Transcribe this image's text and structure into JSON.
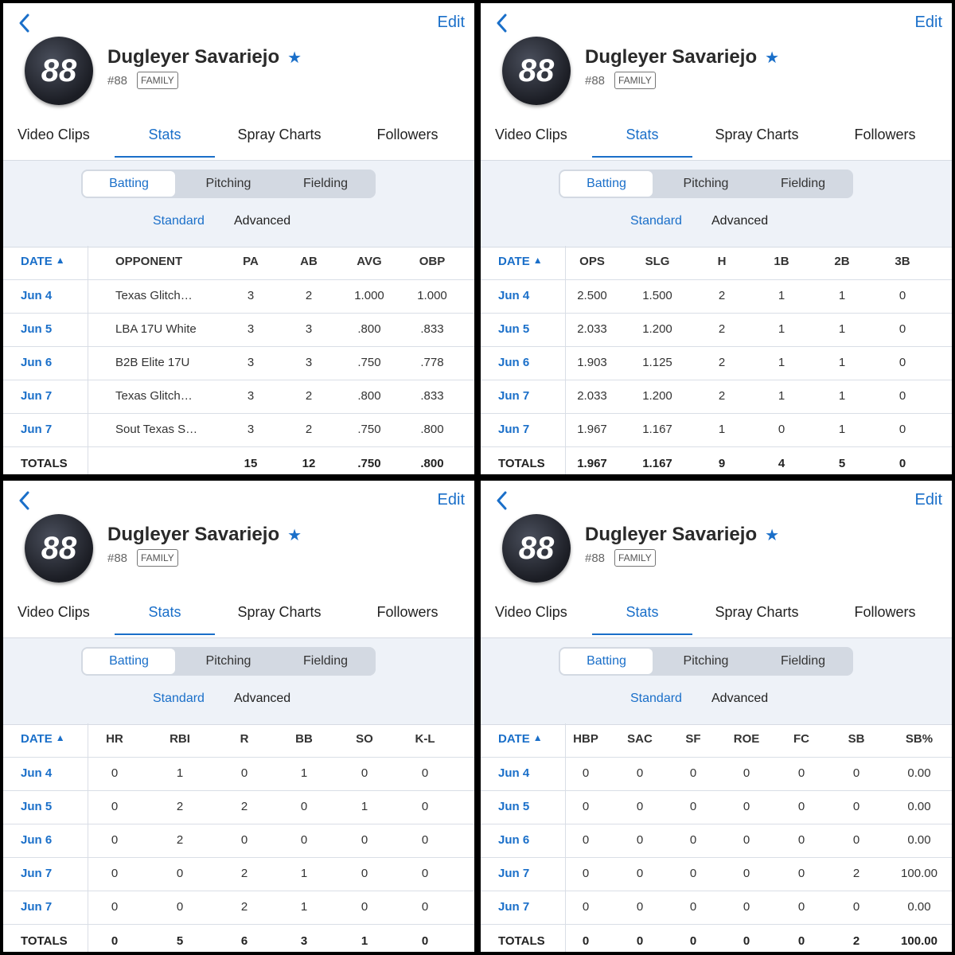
{
  "panels": [
    {
      "nav": {
        "edit": "Edit"
      },
      "player": {
        "avatar_number": "88",
        "name": "Dugleyer Savariejo",
        "number": "#88",
        "badge": "FAMILY"
      },
      "tabs": {
        "items": [
          "Video Clips",
          "Stats",
          "Spray Charts",
          "Followers"
        ],
        "active": 1
      },
      "segments": {
        "items": [
          "Batting",
          "Pitching",
          "Fielding"
        ],
        "active": 0
      },
      "subtabs": {
        "items": [
          "Standard",
          "Advanced"
        ],
        "active": 0
      },
      "table": {
        "columns": [
          "DATE",
          "OPPONENT",
          "PA",
          "AB",
          "AVG",
          "OBP"
        ],
        "rows": [
          [
            "Jun 4",
            "Texas Glitch…",
            3,
            2,
            "1.000",
            "1.000"
          ],
          [
            "Jun 5",
            "LBA 17U White",
            3,
            3,
            ".800",
            ".833"
          ],
          [
            "Jun 6",
            "B2B Elite 17U",
            3,
            3,
            ".750",
            ".778"
          ],
          [
            "Jun 7",
            "Texas Glitch…",
            3,
            2,
            ".800",
            ".833"
          ],
          [
            "Jun 7",
            "Sout Texas S…",
            3,
            2,
            ".750",
            ".800"
          ]
        ],
        "totals": [
          "TOTALS",
          null,
          15,
          12,
          ".750",
          ".800"
        ]
      }
    },
    {
      "nav": {
        "edit": "Edit"
      },
      "player": {
        "avatar_number": "88",
        "name": "Dugleyer Savariejo",
        "number": "#88",
        "badge": "FAMILY"
      },
      "tabs": {
        "items": [
          "Video Clips",
          "Stats",
          "Spray Charts",
          "Followers"
        ],
        "active": 1
      },
      "segments": {
        "items": [
          "Batting",
          "Pitching",
          "Fielding"
        ],
        "active": 0
      },
      "subtabs": {
        "items": [
          "Standard",
          "Advanced"
        ],
        "active": 0
      },
      "table": {
        "columns": [
          "DATE",
          "OPS",
          "SLG",
          "H",
          "1B",
          "2B",
          "3B"
        ],
        "rows": [
          [
            "Jun 4",
            "2.500",
            "1.500",
            2,
            1,
            1,
            0
          ],
          [
            "Jun 5",
            "2.033",
            "1.200",
            2,
            1,
            1,
            0
          ],
          [
            "Jun 6",
            "1.903",
            "1.125",
            2,
            1,
            1,
            0
          ],
          [
            "Jun 7",
            "2.033",
            "1.200",
            2,
            1,
            1,
            0
          ],
          [
            "Jun 7",
            "1.967",
            "1.167",
            1,
            0,
            1,
            0
          ]
        ],
        "totals": [
          "TOTALS",
          "1.967",
          "1.167",
          9,
          4,
          5,
          0
        ]
      }
    },
    {
      "nav": {
        "edit": "Edit"
      },
      "player": {
        "avatar_number": "88",
        "name": "Dugleyer Savariejo",
        "number": "#88",
        "badge": "FAMILY"
      },
      "tabs": {
        "items": [
          "Video Clips",
          "Stats",
          "Spray Charts",
          "Followers"
        ],
        "active": 1
      },
      "segments": {
        "items": [
          "Batting",
          "Pitching",
          "Fielding"
        ],
        "active": 0
      },
      "subtabs": {
        "items": [
          "Standard",
          "Advanced"
        ],
        "active": 0
      },
      "table": {
        "columns": [
          "DATE",
          "HR",
          "RBI",
          "R",
          "BB",
          "SO",
          "K-L"
        ],
        "rows": [
          [
            "Jun 4",
            0,
            1,
            0,
            1,
            0,
            0
          ],
          [
            "Jun 5",
            0,
            2,
            2,
            0,
            1,
            0
          ],
          [
            "Jun 6",
            0,
            2,
            0,
            0,
            0,
            0
          ],
          [
            "Jun 7",
            0,
            0,
            2,
            1,
            0,
            0
          ],
          [
            "Jun 7",
            0,
            0,
            2,
            1,
            0,
            0
          ]
        ],
        "totals": [
          "TOTALS",
          0,
          5,
          6,
          3,
          1,
          0
        ]
      }
    },
    {
      "nav": {
        "edit": "Edit"
      },
      "player": {
        "avatar_number": "88",
        "name": "Dugleyer Savariejo",
        "number": "#88",
        "badge": "FAMILY"
      },
      "tabs": {
        "items": [
          "Video Clips",
          "Stats",
          "Spray Charts",
          "Followers"
        ],
        "active": 1
      },
      "segments": {
        "items": [
          "Batting",
          "Pitching",
          "Fielding"
        ],
        "active": 0
      },
      "subtabs": {
        "items": [
          "Standard",
          "Advanced"
        ],
        "active": 0
      },
      "table": {
        "columns": [
          "DATE",
          "HBP",
          "SAC",
          "SF",
          "ROE",
          "FC",
          "SB",
          "SB%"
        ],
        "rows": [
          [
            "Jun 4",
            0,
            0,
            0,
            0,
            0,
            0,
            "0.00"
          ],
          [
            "Jun 5",
            0,
            0,
            0,
            0,
            0,
            0,
            "0.00"
          ],
          [
            "Jun 6",
            0,
            0,
            0,
            0,
            0,
            0,
            "0.00"
          ],
          [
            "Jun 7",
            0,
            0,
            0,
            0,
            0,
            2,
            "100.00"
          ],
          [
            "Jun 7",
            0,
            0,
            0,
            0,
            0,
            0,
            "0.00"
          ]
        ],
        "totals": [
          "TOTALS",
          0,
          0,
          0,
          0,
          0,
          2,
          "100.00"
        ]
      }
    }
  ]
}
